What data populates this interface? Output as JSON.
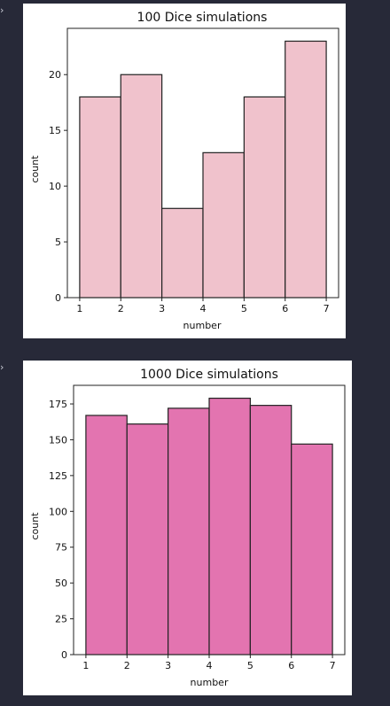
{
  "cells": [
    {
      "prompt_icon": "›",
      "chart_data": {
        "type": "bar",
        "title": "100 Dice simulations",
        "xlabel": "number",
        "ylabel": "count",
        "bin_edges": [
          1,
          2,
          3,
          4,
          5,
          6,
          7
        ],
        "values": [
          18,
          20,
          8,
          13,
          18,
          23
        ],
        "xlim": [
          0.7,
          7.3
        ],
        "ylim": [
          0,
          24.15
        ],
        "xticks": [
          1,
          2,
          3,
          4,
          5,
          6,
          7
        ],
        "yticks": [
          0,
          5,
          10,
          15,
          20
        ],
        "bar_color": "#f0c2cc",
        "edge_color": "#222222",
        "grid": false,
        "legend": "none"
      }
    },
    {
      "prompt_icon": "›",
      "chart_data": {
        "type": "bar",
        "title": "1000 Dice simulations",
        "xlabel": "number",
        "ylabel": "count",
        "bin_edges": [
          1,
          2,
          3,
          4,
          5,
          6,
          7
        ],
        "values": [
          167,
          161,
          172,
          179,
          174,
          147
        ],
        "xlim": [
          0.7,
          7.3
        ],
        "ylim": [
          0,
          188
        ],
        "xticks": [
          1,
          2,
          3,
          4,
          5,
          6,
          7
        ],
        "yticks": [
          0,
          25,
          50,
          75,
          100,
          125,
          150,
          175
        ],
        "bar_color": "#e374b0",
        "edge_color": "#222222",
        "grid": false,
        "legend": "none"
      }
    }
  ]
}
